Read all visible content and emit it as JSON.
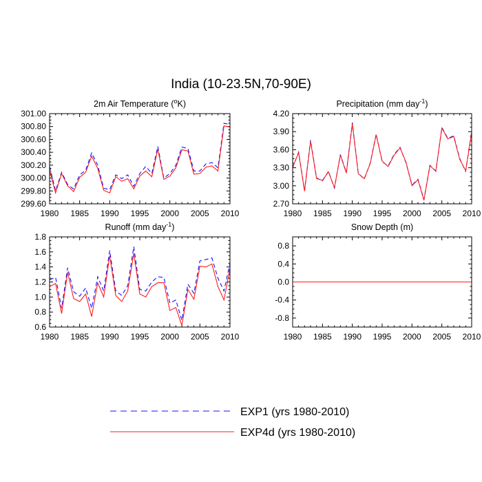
{
  "figure_title": "India (10-23.5N,70-90E)",
  "colors": {
    "exp1": "#1010ff",
    "exp4d": "#ff1a1a"
  },
  "legend": [
    {
      "label": "EXP1 (yrs 1980-2010)",
      "style": "dashed",
      "color": "#1010ff"
    },
    {
      "label": "EXP4d (yrs 1980-2010)",
      "style": "solid",
      "color": "#ff1a1a"
    }
  ],
  "chart_data": [
    {
      "type": "line",
      "title": "2m Air Temperature (°K)",
      "title_main": "2m Air Temperature (",
      "title_sup": "o",
      "title_tail": "K)",
      "x": [
        1980,
        1981,
        1982,
        1983,
        1984,
        1985,
        1986,
        1987,
        1988,
        1989,
        1990,
        1991,
        1992,
        1993,
        1994,
        1995,
        1996,
        1997,
        1998,
        1999,
        2000,
        2001,
        2002,
        2003,
        2004,
        2005,
        2006,
        2007,
        2008,
        2009,
        2010
      ],
      "xlim": [
        1980,
        2010
      ],
      "xticks": [
        1980,
        1985,
        1990,
        1995,
        2000,
        2005,
        2010
      ],
      "ylim": [
        299.6,
        301.0
      ],
      "yticks": [
        299.6,
        299.8,
        300.0,
        300.2,
        300.4,
        300.6,
        300.8,
        301.0
      ],
      "ytick_labels": [
        "299.60",
        "299.80",
        "300.00",
        "300.20",
        "300.40",
        "300.60",
        "300.80",
        "301.00"
      ],
      "series": [
        {
          "name": "EXP1 (yrs 1980-2010)",
          "values": [
            300.18,
            299.8,
            300.09,
            299.9,
            299.83,
            300.05,
            300.12,
            300.39,
            300.2,
            299.84,
            299.82,
            300.05,
            299.99,
            300.05,
            299.87,
            300.07,
            300.18,
            300.07,
            300.49,
            300.0,
            300.07,
            300.2,
            300.48,
            300.46,
            300.11,
            300.11,
            300.22,
            300.24,
            300.16,
            300.85,
            300.83
          ]
        },
        {
          "name": "EXP4d (yrs 1980-2010)",
          "values": [
            300.12,
            299.77,
            300.07,
            299.88,
            299.79,
            300.01,
            300.09,
            300.34,
            300.15,
            299.81,
            299.77,
            300.02,
            299.95,
            299.99,
            299.83,
            300.03,
            300.11,
            300.02,
            300.45,
            299.98,
            300.03,
            300.16,
            300.44,
            300.42,
            300.06,
            300.07,
            300.17,
            300.19,
            300.11,
            300.81,
            300.79
          ]
        }
      ]
    },
    {
      "type": "line",
      "title": "Precipitation (mm day-1)",
      "title_main": "Precipitation (mm day",
      "title_sup": "-1",
      "title_tail": ")",
      "x": [
        1980,
        1981,
        1982,
        1983,
        1984,
        1985,
        1986,
        1987,
        1988,
        1989,
        1990,
        1991,
        1992,
        1993,
        1994,
        1995,
        1996,
        1997,
        1998,
        1999,
        2000,
        2001,
        2002,
        2003,
        2004,
        2005,
        2006,
        2007,
        2008,
        2009,
        2010
      ],
      "xlim": [
        1980,
        2010
      ],
      "xticks": [
        1980,
        1985,
        1990,
        1995,
        2000,
        2005,
        2010
      ],
      "ylim": [
        2.7,
        4.2
      ],
      "yticks": [
        2.7,
        3.0,
        3.3,
        3.6,
        3.9,
        4.2
      ],
      "ytick_labels": [
        "2.70",
        "3.00",
        "3.30",
        "3.60",
        "3.90",
        "4.20"
      ],
      "series": [
        {
          "name": "EXP1 (yrs 1980-2010)",
          "values": [
            3.3,
            3.56,
            2.92,
            3.76,
            3.13,
            3.08,
            3.24,
            2.96,
            3.52,
            3.22,
            4.05,
            3.21,
            3.11,
            3.38,
            3.86,
            3.4,
            3.33,
            3.52,
            3.64,
            3.38,
            3.01,
            3.11,
            2.77,
            3.34,
            3.24,
            3.97,
            3.79,
            3.83,
            3.45,
            3.24,
            3.9
          ]
        },
        {
          "name": "EXP4d (yrs 1980-2010)",
          "values": [
            3.31,
            3.55,
            2.91,
            3.74,
            3.12,
            3.09,
            3.23,
            2.97,
            3.51,
            3.21,
            4.03,
            3.2,
            3.12,
            3.37,
            3.85,
            3.41,
            3.32,
            3.51,
            3.63,
            3.39,
            3.0,
            3.1,
            2.76,
            3.33,
            3.25,
            3.96,
            3.78,
            3.82,
            3.44,
            3.25,
            3.89
          ]
        }
      ]
    },
    {
      "type": "line",
      "title": "Runoff (mm day-1)",
      "title_main": "Runoff (mm day",
      "title_sup": "-1",
      "title_tail": ")",
      "x": [
        1980,
        1981,
        1982,
        1983,
        1984,
        1985,
        1986,
        1987,
        1988,
        1989,
        1990,
        1991,
        1992,
        1993,
        1994,
        1995,
        1996,
        1997,
        1998,
        1999,
        2000,
        2001,
        2002,
        2003,
        2004,
        2005,
        2006,
        2007,
        2008,
        2009,
        2010
      ],
      "xlim": [
        1980,
        2010
      ],
      "xticks": [
        1980,
        1985,
        1990,
        1995,
        2000,
        2005,
        2010
      ],
      "ylim": [
        0.6,
        1.8
      ],
      "yticks": [
        0.6,
        0.8,
        1.0,
        1.2,
        1.4,
        1.6,
        1.8
      ],
      "ytick_labels": [
        "0.6",
        "0.8",
        "1.0",
        "1.2",
        "1.4",
        "1.6",
        "1.8"
      ],
      "series": [
        {
          "name": "EXP1 (yrs 1980-2010)",
          "values": [
            1.23,
            1.26,
            0.85,
            1.39,
            1.07,
            1.01,
            1.12,
            0.85,
            1.27,
            1.08,
            1.62,
            1.08,
            1.02,
            1.15,
            1.67,
            1.1,
            1.08,
            1.2,
            1.27,
            1.26,
            0.92,
            0.96,
            0.69,
            1.17,
            1.05,
            1.48,
            1.5,
            1.52,
            1.25,
            1.08,
            1.45
          ]
        },
        {
          "name": "EXP4d (yrs 1980-2010)",
          "values": [
            1.14,
            1.18,
            0.78,
            1.33,
            0.98,
            0.94,
            1.04,
            0.74,
            1.19,
            1.0,
            1.55,
            1.02,
            0.94,
            1.08,
            1.58,
            1.04,
            1.0,
            1.14,
            1.19,
            1.19,
            0.82,
            0.86,
            0.62,
            1.1,
            0.97,
            1.41,
            1.4,
            1.44,
            1.14,
            0.96,
            1.38
          ]
        }
      ]
    },
    {
      "type": "line",
      "title": "Snow Depth (m)",
      "title_main": "Snow Depth (m)",
      "title_sup": "",
      "title_tail": "",
      "x": [
        1980,
        1981,
        1982,
        1983,
        1984,
        1985,
        1986,
        1987,
        1988,
        1989,
        1990,
        1991,
        1992,
        1993,
        1994,
        1995,
        1996,
        1997,
        1998,
        1999,
        2000,
        2001,
        2002,
        2003,
        2004,
        2005,
        2006,
        2007,
        2008,
        2009,
        2010
      ],
      "xlim": [
        1980,
        2010
      ],
      "xticks": [
        1980,
        1985,
        1990,
        1995,
        2000,
        2005,
        2010
      ],
      "ylim": [
        -1.0,
        1.0
      ],
      "yticks": [
        -0.8,
        -0.4,
        0.0,
        0.4,
        0.8
      ],
      "ytick_labels": [
        "-0.8",
        "-0.4",
        "0.0",
        "0.4",
        "0.8"
      ],
      "series": [
        {
          "name": "EXP1 (yrs 1980-2010)",
          "values": [
            0,
            0,
            0,
            0,
            0,
            0,
            0,
            0,
            0,
            0,
            0,
            0,
            0,
            0,
            0,
            0,
            0,
            0,
            0,
            0,
            0,
            0,
            0,
            0,
            0,
            0,
            0,
            0,
            0,
            0,
            0
          ]
        },
        {
          "name": "EXP4d (yrs 1980-2010)",
          "values": [
            0,
            0,
            0,
            0,
            0,
            0,
            0,
            0,
            0,
            0,
            0,
            0,
            0,
            0,
            0,
            0,
            0,
            0,
            0,
            0,
            0,
            0,
            0,
            0,
            0,
            0,
            0,
            0,
            0,
            0,
            0
          ]
        }
      ]
    }
  ]
}
